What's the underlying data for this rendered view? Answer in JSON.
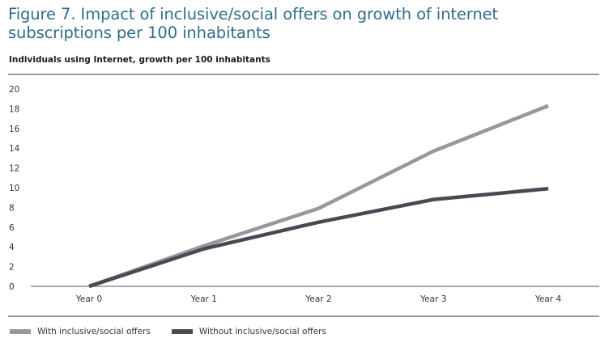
{
  "figure": {
    "title": "Figure 7. Impact of inclusive/social offers on growth of internet subscriptions per 100 inhabitants"
  },
  "chart_data": {
    "type": "line",
    "title": "Individuals using Internet, growth per 100 inhabitants",
    "xlabel": "",
    "ylabel": "",
    "categories": [
      "Year 0",
      "Year 1",
      "Year 2",
      "Year 3",
      "Year 4"
    ],
    "ylim": [
      0,
      20
    ],
    "yticks": [
      0,
      2,
      4,
      6,
      8,
      10,
      12,
      14,
      16,
      18,
      20
    ],
    "grid": false,
    "legend_position": "bottom-left",
    "series": [
      {
        "name": "With inclusive/social offers",
        "color": "#98979c",
        "values": [
          0,
          4.1,
          7.9,
          13.7,
          18.3
        ]
      },
      {
        "name": "Without inclusive/social offers",
        "color": "#4a4853",
        "values": [
          0,
          3.8,
          6.5,
          8.8,
          9.9
        ]
      }
    ]
  }
}
